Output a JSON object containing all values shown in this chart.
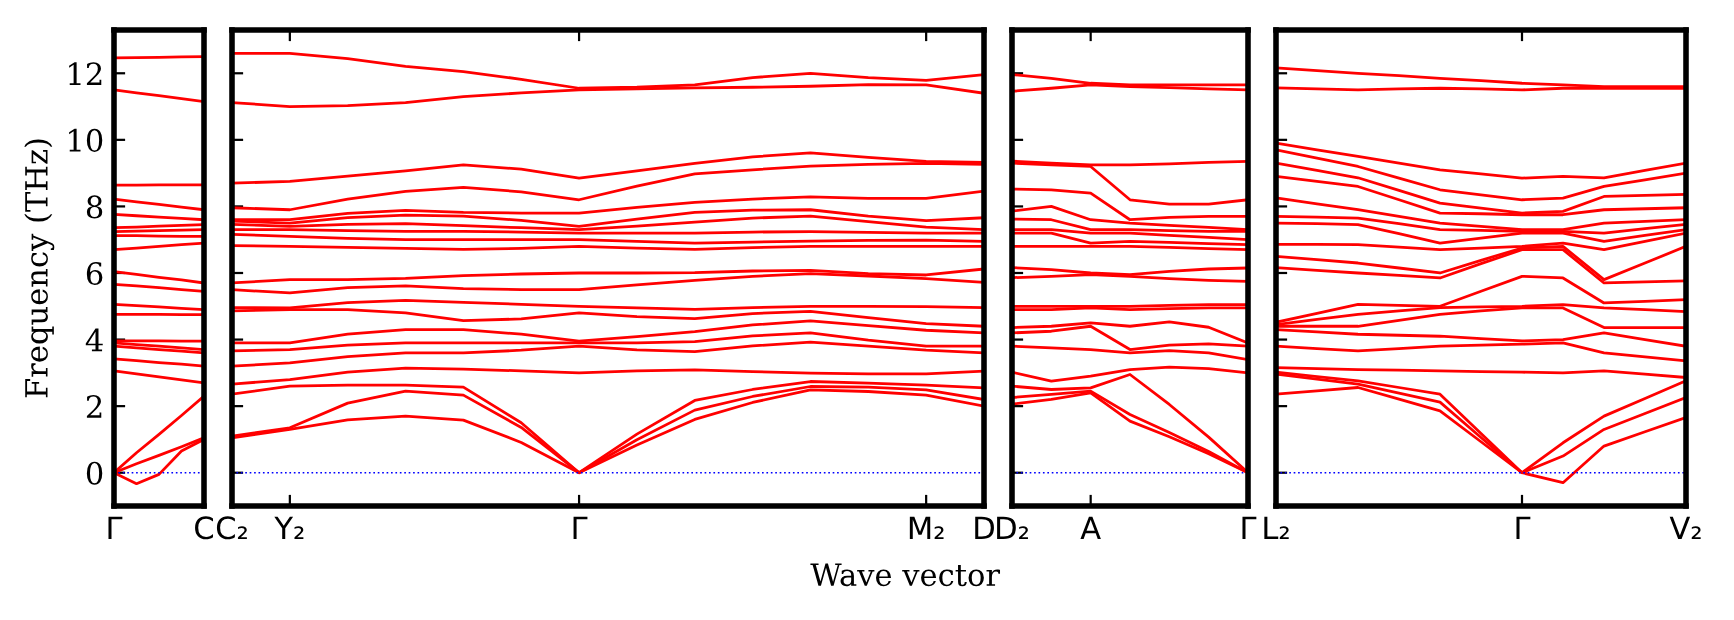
{
  "chart_data": [
    {
      "type": "line",
      "ylabel": "Frequency (THz)",
      "categories": [
        "Γ",
        null,
        null,
        null,
        "C"
      ],
      "ylim": [
        -1,
        13.3
      ],
      "yticks": [
        0,
        2,
        4,
        6,
        8,
        10,
        12
      ],
      "grid": false,
      "ref_lines": [
        {
          "axis": "y",
          "value": 0,
          "color": "#0000ff",
          "line_style": "dotted"
        }
      ],
      "series": [
        {
          "color": "#ff0000",
          "values": [
            0,
            -0.33,
            -0.05,
            0.65,
            1.0
          ]
        },
        {
          "color": "#ff0000",
          "values": [
            0,
            0.27,
            0.52,
            0.78,
            1.05
          ]
        },
        {
          "color": "#ff0000",
          "values": [
            0,
            0.6,
            1.15,
            1.72,
            2.3
          ]
        },
        {
          "color": "#ff0000",
          "values": [
            3.06,
            2.97,
            2.88,
            2.79,
            2.7
          ]
        },
        {
          "color": "#ff0000",
          "values": [
            3.42,
            3.37,
            3.31,
            3.26,
            3.2
          ]
        },
        {
          "color": "#ff0000",
          "values": [
            3.8,
            3.75,
            3.7,
            3.65,
            3.6
          ]
        },
        {
          "color": "#ff0000",
          "values": [
            3.9,
            3.85,
            3.8,
            3.75,
            3.7
          ]
        },
        {
          "color": "#ff0000",
          "values": [
            3.96,
            3.96,
            3.96,
            3.95,
            3.95
          ]
        },
        {
          "color": "#ff0000",
          "values": [
            4.76,
            4.76,
            4.76,
            4.75,
            4.75
          ]
        },
        {
          "color": "#ff0000",
          "values": [
            5.06,
            5.02,
            4.98,
            4.94,
            4.9
          ]
        },
        {
          "color": "#ff0000",
          "values": [
            5.66,
            5.61,
            5.56,
            5.5,
            5.45
          ]
        },
        {
          "color": "#ff0000",
          "values": [
            6.04,
            5.96,
            5.87,
            5.79,
            5.7
          ]
        },
        {
          "color": "#ff0000",
          "values": [
            6.7,
            6.75,
            6.8,
            6.85,
            6.9
          ]
        },
        {
          "color": "#ff0000",
          "values": [
            7.12,
            7.12,
            7.11,
            7.1,
            7.1
          ]
        },
        {
          "color": "#ff0000",
          "values": [
            7.24,
            7.26,
            7.27,
            7.29,
            7.3
          ]
        },
        {
          "color": "#ff0000",
          "values": [
            7.36,
            7.38,
            7.41,
            7.43,
            7.45
          ]
        },
        {
          "color": "#ff0000",
          "values": [
            7.76,
            7.72,
            7.68,
            7.64,
            7.6
          ]
        },
        {
          "color": "#ff0000",
          "values": [
            8.22,
            8.14,
            8.06,
            7.98,
            7.9
          ]
        },
        {
          "color": "#ff0000",
          "values": [
            8.64,
            8.64,
            8.65,
            8.65,
            8.65
          ]
        },
        {
          "color": "#ff0000",
          "values": [
            11.5,
            11.41,
            11.33,
            11.24,
            11.15
          ]
        },
        {
          "color": "#ff0000",
          "values": [
            12.46,
            12.47,
            12.48,
            12.49,
            12.5
          ]
        }
      ]
    },
    {
      "type": "line",
      "xlabel": "Wave vector",
      "tick_labels": "x",
      "categories": [
        "C₂",
        "Y₂",
        null,
        null,
        null,
        null,
        "Γ",
        null,
        null,
        null,
        null,
        null,
        "M₂",
        "D"
      ],
      "ylim": [
        -1,
        13.3
      ],
      "yticks": [
        {
          "value": 0,
          "label": null
        },
        {
          "value": 2,
          "label": null
        },
        {
          "value": 4,
          "label": null
        },
        {
          "value": 6,
          "label": null
        },
        {
          "value": 8,
          "label": null
        },
        {
          "value": 10,
          "label": null
        },
        {
          "value": 12,
          "label": null
        }
      ],
      "grid": false,
      "ref_lines": [
        {
          "axis": "y",
          "value": 0,
          "color": "#0000ff",
          "line_style": "dotted"
        }
      ],
      "series": [
        {
          "color": "#ff0000",
          "values": [
            1.05,
            1.3,
            1.59,
            1.7,
            1.58,
            0.91,
            0,
            0.83,
            1.6,
            2.11,
            2.49,
            2.44,
            2.33,
            2.0
          ]
        },
        {
          "color": "#ff0000",
          "values": [
            1.1,
            1.35,
            2.09,
            2.45,
            2.33,
            1.36,
            0,
            0.99,
            1.88,
            2.29,
            2.59,
            2.57,
            2.49,
            2.2
          ]
        },
        {
          "color": "#ff0000",
          "values": [
            2.36,
            2.6,
            2.63,
            2.63,
            2.57,
            1.5,
            0,
            1.16,
            2.17,
            2.5,
            2.74,
            2.69,
            2.63,
            2.55
          ]
        },
        {
          "color": "#ff0000",
          "values": [
            2.66,
            2.8,
            3.02,
            3.14,
            3.11,
            3.06,
            3.0,
            3.06,
            3.09,
            3.04,
            2.99,
            2.97,
            2.97,
            3.05
          ]
        },
        {
          "color": "#ff0000",
          "values": [
            3.2,
            3.3,
            3.49,
            3.6,
            3.6,
            3.68,
            3.8,
            3.69,
            3.64,
            3.81,
            3.92,
            3.8,
            3.68,
            3.6
          ]
        },
        {
          "color": "#ff0000",
          "values": [
            3.66,
            3.7,
            3.83,
            3.9,
            3.9,
            3.9,
            3.9,
            3.9,
            3.94,
            4.11,
            4.2,
            3.98,
            3.8,
            3.8
          ]
        },
        {
          "color": "#ff0000",
          "values": [
            3.9,
            3.9,
            4.16,
            4.3,
            4.3,
            4.16,
            3.95,
            4.09,
            4.24,
            4.44,
            4.56,
            4.42,
            4.28,
            4.2
          ]
        },
        {
          "color": "#ff0000",
          "values": [
            4.86,
            4.9,
            4.9,
            4.8,
            4.57,
            4.62,
            4.8,
            4.69,
            4.63,
            4.78,
            4.85,
            4.66,
            4.48,
            4.4
          ]
        },
        {
          "color": "#ff0000",
          "values": [
            4.96,
            4.95,
            5.11,
            5.18,
            5.12,
            5.06,
            5.0,
            4.95,
            4.91,
            4.96,
            5.0,
            5.0,
            4.99,
            4.96
          ]
        },
        {
          "color": "#ff0000",
          "values": [
            5.5,
            5.4,
            5.56,
            5.61,
            5.53,
            5.5,
            5.5,
            5.64,
            5.78,
            5.9,
            5.98,
            5.91,
            5.83,
            5.72
          ]
        },
        {
          "color": "#ff0000",
          "values": [
            5.7,
            5.8,
            5.8,
            5.84,
            5.92,
            5.97,
            6.0,
            6.0,
            6.01,
            6.06,
            6.08,
            5.98,
            5.94,
            6.12
          ]
        },
        {
          "color": "#ff0000",
          "values": [
            6.82,
            6.8,
            6.77,
            6.74,
            6.71,
            6.74,
            6.8,
            6.75,
            6.71,
            6.76,
            6.8,
            6.8,
            6.8,
            6.8
          ]
        },
        {
          "color": "#ff0000",
          "values": [
            7.16,
            7.1,
            7.04,
            7.0,
            7.0,
            7.0,
            7.0,
            6.95,
            6.9,
            6.93,
            6.96,
            6.98,
            6.99,
            6.95
          ]
        },
        {
          "color": "#ff0000",
          "values": [
            7.3,
            7.3,
            7.27,
            7.25,
            7.25,
            7.23,
            7.2,
            7.2,
            7.2,
            7.23,
            7.24,
            7.22,
            7.2,
            7.2
          ]
        },
        {
          "color": "#ff0000",
          "values": [
            7.46,
            7.4,
            7.46,
            7.48,
            7.42,
            7.36,
            7.3,
            7.41,
            7.53,
            7.65,
            7.71,
            7.54,
            7.38,
            7.3
          ]
        },
        {
          "color": "#ff0000",
          "values": [
            7.56,
            7.5,
            7.66,
            7.74,
            7.71,
            7.58,
            7.4,
            7.62,
            7.82,
            7.89,
            7.9,
            7.71,
            7.57,
            7.66
          ]
        },
        {
          "color": "#ff0000",
          "values": [
            7.6,
            7.6,
            7.79,
            7.88,
            7.82,
            7.8,
            7.8,
            7.97,
            8.12,
            8.22,
            8.29,
            8.24,
            8.24,
            8.46
          ]
        },
        {
          "color": "#ff0000",
          "values": [
            7.96,
            7.9,
            8.22,
            8.45,
            8.57,
            8.44,
            8.2,
            8.61,
            8.98,
            9.1,
            9.21,
            9.26,
            9.29,
            9.26
          ]
        },
        {
          "color": "#ff0000",
          "values": [
            8.7,
            8.75,
            8.91,
            9.07,
            9.25,
            9.12,
            8.85,
            9.07,
            9.29,
            9.49,
            9.61,
            9.47,
            9.35,
            9.32
          ]
        },
        {
          "color": "#ff0000",
          "values": [
            11.12,
            11.0,
            11.03,
            11.12,
            11.3,
            11.41,
            11.5,
            11.53,
            11.56,
            11.58,
            11.61,
            11.66,
            11.65,
            11.4
          ]
        },
        {
          "color": "#ff0000",
          "values": [
            12.6,
            12.6,
            12.44,
            12.21,
            12.05,
            11.82,
            11.55,
            11.58,
            11.65,
            11.87,
            12.0,
            11.87,
            11.79,
            11.96
          ]
        }
      ]
    },
    {
      "type": "line",
      "tick_labels": "x",
      "categories": [
        "D₂",
        null,
        "A",
        null,
        null,
        null,
        "Γ"
      ],
      "ylim": [
        -1,
        13.3
      ],
      "yticks": [
        {
          "value": 0,
          "label": null
        },
        {
          "value": 2,
          "label": null
        },
        {
          "value": 4,
          "label": null
        },
        {
          "value": 6,
          "label": null
        },
        {
          "value": 8,
          "label": null
        },
        {
          "value": 10,
          "label": null
        },
        {
          "value": 12,
          "label": null
        }
      ],
      "grid": false,
      "ref_lines": [
        {
          "axis": "y",
          "value": 0,
          "color": "#0000ff",
          "line_style": "dotted"
        }
      ],
      "series": [
        {
          "color": "#ff0000",
          "values": [
            2.06,
            2.2,
            2.4,
            1.55,
            1.08,
            0.57,
            0
          ]
        },
        {
          "color": "#ff0000",
          "values": [
            2.26,
            2.35,
            2.45,
            1.75,
            1.21,
            0.64,
            0
          ]
        },
        {
          "color": "#ff0000",
          "values": [
            2.6,
            2.5,
            2.55,
            2.95,
            2.05,
            1.07,
            0
          ]
        },
        {
          "color": "#ff0000",
          "values": [
            3.02,
            2.75,
            2.9,
            3.1,
            3.17,
            3.13,
            3.0
          ]
        },
        {
          "color": "#ff0000",
          "values": [
            3.8,
            3.75,
            3.7,
            3.6,
            3.67,
            3.6,
            3.4
          ]
        },
        {
          "color": "#ff0000",
          "values": [
            4.2,
            4.25,
            4.4,
            3.7,
            3.83,
            3.87,
            3.8
          ]
        },
        {
          "color": "#ff0000",
          "values": [
            4.36,
            4.4,
            4.5,
            4.4,
            4.53,
            4.37,
            3.9
          ]
        },
        {
          "color": "#ff0000",
          "values": [
            4.9,
            4.9,
            4.95,
            4.9,
            4.93,
            4.95,
            4.95
          ]
        },
        {
          "color": "#ff0000",
          "values": [
            5.0,
            5.0,
            5.0,
            5.0,
            5.03,
            5.05,
            5.05
          ]
        },
        {
          "color": "#ff0000",
          "values": [
            5.86,
            5.9,
            5.95,
            5.9,
            5.83,
            5.78,
            5.75
          ]
        },
        {
          "color": "#ff0000",
          "values": [
            6.16,
            6.1,
            6.0,
            5.95,
            6.05,
            6.12,
            6.15
          ]
        },
        {
          "color": "#ff0000",
          "values": [
            6.8,
            6.8,
            6.8,
            6.8,
            6.77,
            6.73,
            6.7
          ]
        },
        {
          "color": "#ff0000",
          "values": [
            7.2,
            7.2,
            6.9,
            6.95,
            6.92,
            6.88,
            6.85
          ]
        },
        {
          "color": "#ff0000",
          "values": [
            7.3,
            7.3,
            7.2,
            7.2,
            7.13,
            7.07,
            7.0
          ]
        },
        {
          "color": "#ff0000",
          "values": [
            7.62,
            7.6,
            7.3,
            7.3,
            7.27,
            7.25,
            7.25
          ]
        },
        {
          "color": "#ff0000",
          "values": [
            7.86,
            8.0,
            7.6,
            7.5,
            7.43,
            7.37,
            7.3
          ]
        },
        {
          "color": "#ff0000",
          "values": [
            8.52,
            8.5,
            8.4,
            7.6,
            7.67,
            7.7,
            7.7
          ]
        },
        {
          "color": "#ff0000",
          "values": [
            9.3,
            9.25,
            9.2,
            8.2,
            8.07,
            8.07,
            8.2
          ]
        },
        {
          "color": "#ff0000",
          "values": [
            9.36,
            9.3,
            9.25,
            9.25,
            9.28,
            9.32,
            9.35
          ]
        },
        {
          "color": "#ff0000",
          "values": [
            11.46,
            11.55,
            11.65,
            11.6,
            11.57,
            11.53,
            11.5
          ]
        },
        {
          "color": "#ff0000",
          "values": [
            11.96,
            11.85,
            11.7,
            11.65,
            11.65,
            11.65,
            11.65
          ]
        }
      ]
    },
    {
      "type": "line",
      "tick_labels": "x",
      "categories": [
        "L₂",
        null,
        null,
        null,
        null,
        null,
        "Γ",
        null,
        null,
        null,
        "V₂"
      ],
      "ylim": [
        -1,
        13.3
      ],
      "yticks": [
        {
          "value": 0,
          "label": null
        },
        {
          "value": 2,
          "label": null
        },
        {
          "value": 4,
          "label": null
        },
        {
          "value": 6,
          "label": null
        },
        {
          "value": 8,
          "label": null
        },
        {
          "value": 10,
          "label": null
        },
        {
          "value": 12,
          "label": null
        }
      ],
      "grid": false,
      "ref_lines": [
        {
          "axis": "y",
          "value": 0,
          "color": "#0000ff",
          "line_style": "dotted"
        }
      ],
      "series": [
        {
          "color": "#ff0000",
          "values": [
            2.36,
            2.46,
            2.56,
            2.21,
            1.86,
            0.93,
            0,
            -0.3,
            0.8,
            1.23,
            1.66
          ]
        },
        {
          "color": "#ff0000",
          "values": [
            2.96,
            2.81,
            2.66,
            2.39,
            2.12,
            1.06,
            0,
            0.5,
            1.3,
            1.78,
            2.26
          ]
        },
        {
          "color": "#ff0000",
          "values": [
            3.02,
            2.89,
            2.76,
            2.56,
            2.36,
            1.18,
            0,
            0.9,
            1.7,
            2.23,
            2.76
          ]
        },
        {
          "color": "#ff0000",
          "values": [
            3.16,
            3.13,
            3.1,
            3.08,
            3.06,
            3.04,
            3.02,
            3.0,
            3.06,
            2.96,
            2.86
          ]
        },
        {
          "color": "#ff0000",
          "values": [
            3.8,
            3.73,
            3.66,
            3.73,
            3.8,
            3.83,
            3.86,
            3.9,
            3.6,
            3.48,
            3.36
          ]
        },
        {
          "color": "#ff0000",
          "values": [
            4.3,
            4.23,
            4.16,
            4.13,
            4.1,
            4.03,
            3.96,
            4.0,
            4.2,
            4.0,
            3.8
          ]
        },
        {
          "color": "#ff0000",
          "values": [
            4.4,
            4.4,
            4.4,
            4.58,
            4.76,
            4.86,
            4.95,
            4.95,
            4.36,
            4.36,
            4.36
          ]
        },
        {
          "color": "#ff0000",
          "values": [
            4.45,
            4.61,
            4.76,
            4.86,
            4.96,
            4.98,
            5.0,
            5.05,
            4.95,
            4.9,
            4.84
          ]
        },
        {
          "color": "#ff0000",
          "values": [
            4.52,
            4.79,
            5.06,
            5.03,
            5.0,
            5.45,
            5.9,
            5.85,
            5.1,
            5.15,
            5.2
          ]
        },
        {
          "color": "#ff0000",
          "values": [
            6.16,
            6.08,
            6.0,
            5.93,
            5.85,
            6.28,
            6.7,
            6.7,
            5.7,
            5.73,
            5.76
          ]
        },
        {
          "color": "#ff0000",
          "values": [
            6.5,
            6.4,
            6.3,
            6.15,
            6.0,
            6.38,
            6.75,
            6.8,
            5.8,
            6.3,
            6.8
          ]
        },
        {
          "color": "#ff0000",
          "values": [
            6.86,
            6.86,
            6.85,
            6.78,
            6.7,
            6.75,
            6.8,
            6.9,
            6.7,
            6.95,
            7.2
          ]
        },
        {
          "color": "#ff0000",
          "values": [
            7.5,
            7.48,
            7.45,
            7.18,
            6.9,
            7.05,
            7.2,
            7.2,
            6.95,
            7.13,
            7.3
          ]
        },
        {
          "color": "#ff0000",
          "values": [
            7.7,
            7.68,
            7.65,
            7.48,
            7.3,
            7.28,
            7.25,
            7.25,
            7.2,
            7.33,
            7.46
          ]
        },
        {
          "color": "#ff0000",
          "values": [
            8.26,
            8.08,
            7.9,
            7.7,
            7.5,
            7.4,
            7.3,
            7.3,
            7.5,
            7.55,
            7.6
          ]
        },
        {
          "color": "#ff0000",
          "values": [
            8.9,
            8.75,
            8.6,
            8.2,
            7.8,
            7.78,
            7.75,
            7.75,
            7.9,
            7.93,
            7.96
          ]
        },
        {
          "color": "#ff0000",
          "values": [
            9.3,
            9.08,
            8.86,
            8.48,
            8.1,
            7.95,
            7.8,
            7.85,
            8.3,
            8.33,
            8.36
          ]
        },
        {
          "color": "#ff0000",
          "values": [
            9.7,
            9.45,
            9.2,
            8.85,
            8.5,
            8.35,
            8.2,
            8.25,
            8.6,
            8.8,
            9.0
          ]
        },
        {
          "color": "#ff0000",
          "values": [
            9.9,
            9.7,
            9.5,
            9.3,
            9.1,
            8.98,
            8.85,
            8.9,
            8.86,
            9.08,
            9.3
          ]
        },
        {
          "color": "#ff0000",
          "values": [
            11.56,
            11.53,
            11.5,
            11.53,
            11.55,
            11.53,
            11.5,
            11.55,
            11.55,
            11.55,
            11.55
          ]
        },
        {
          "color": "#ff0000",
          "values": [
            12.16,
            12.08,
            12.0,
            11.93,
            11.85,
            11.78,
            11.7,
            11.65,
            11.6,
            11.6,
            11.6
          ]
        }
      ]
    }
  ]
}
